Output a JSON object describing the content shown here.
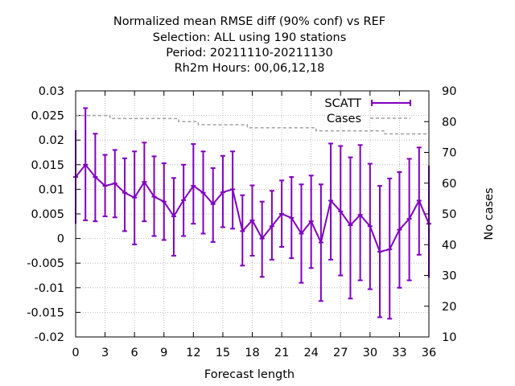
{
  "chart_data": {
    "type": "line",
    "title_lines": [
      "Normalized mean RMSE diff (90% conf) vs REF",
      "Selection: ALL using   190 stations",
      "Period: 20211110-20211130",
      "Rh2m   Hours:  00,06,12,18"
    ],
    "xlabel": "Forecast length",
    "ylabel": "",
    "y2label": "No cases",
    "xlim": [
      0,
      36
    ],
    "ylim": [
      -0.02,
      0.03
    ],
    "y2lim": [
      10,
      90
    ],
    "xticks": [
      "0",
      "3",
      "6",
      "9",
      "12",
      "15",
      "18",
      "21",
      "24",
      "27",
      "30",
      "33",
      "36"
    ],
    "yticks": [
      "-0.02",
      "-0.015",
      "-0.01",
      "-0.005",
      "0",
      "0.005",
      "0.01",
      "0.015",
      "0.02",
      "0.025",
      "0.03"
    ],
    "y2ticks": [
      "10",
      "20",
      "30",
      "40",
      "50",
      "60",
      "70",
      "80",
      "90"
    ],
    "grid": true,
    "legend_position": "top-right",
    "series": [
      {
        "name": "SCATT",
        "color": "#8000c0",
        "x": [
          0,
          1,
          2,
          3,
          4,
          5,
          6,
          7,
          8,
          9,
          10,
          11,
          12,
          13,
          14,
          15,
          16,
          17,
          18,
          19,
          20,
          21,
          22,
          23,
          24,
          25,
          26,
          27,
          28,
          29,
          30,
          31,
          32,
          33,
          34,
          35,
          36
        ],
        "y": [
          0.0125,
          0.015,
          0.0125,
          0.0107,
          0.0112,
          0.0093,
          0.0083,
          0.0115,
          0.0085,
          0.0075,
          0.0045,
          0.0078,
          0.0107,
          0.0093,
          0.007,
          0.0094,
          0.01,
          0.0015,
          0.0037,
          0.0,
          0.0025,
          0.005,
          0.0042,
          0.001,
          0.0035,
          -0.0008,
          0.0077,
          0.0055,
          0.0027,
          0.0048,
          0.0025,
          -0.0027,
          -0.0022,
          0.0018,
          0.004,
          0.0077,
          0.003
        ],
        "err_low": [
          0.003,
          0.0037,
          0.0035,
          0.0045,
          0.0043,
          0.0015,
          -0.0012,
          0.0035,
          0.0005,
          -0.0003,
          -0.0035,
          0.0005,
          0.003,
          0.001,
          -0.0007,
          0.0023,
          0.002,
          -0.0055,
          -0.0035,
          -0.0078,
          -0.0043,
          -0.0017,
          -0.004,
          -0.009,
          -0.006,
          -0.0127,
          -0.0043,
          -0.0075,
          -0.0122,
          -0.0085,
          -0.0103,
          -0.016,
          -0.0163,
          -0.01,
          -0.0085,
          -0.0033,
          -0.008
        ],
        "err_high": [
          0.022,
          0.0265,
          0.0213,
          0.017,
          0.018,
          0.0163,
          0.0177,
          0.0195,
          0.0167,
          0.0153,
          0.0123,
          0.015,
          0.0192,
          0.0177,
          0.0143,
          0.0168,
          0.0177,
          0.0088,
          0.0108,
          0.0075,
          0.0097,
          0.0118,
          0.0125,
          0.011,
          0.0128,
          0.011,
          0.0193,
          0.0188,
          0.0165,
          0.019,
          0.0152,
          0.0107,
          0.0122,
          0.0135,
          0.0162,
          0.0185,
          0.0148
        ]
      },
      {
        "name": "Cases",
        "color": "#a0a0a0",
        "axis": "y2",
        "x": [
          0,
          1,
          2,
          3,
          4,
          5,
          6,
          7,
          8,
          9,
          10,
          11,
          12,
          13,
          14,
          15,
          16,
          17,
          18,
          19,
          20,
          21,
          22,
          23,
          24,
          25,
          26,
          27,
          28,
          29,
          30,
          31,
          32,
          33,
          34,
          35,
          36
        ],
        "y": [
          82,
          82,
          82,
          82,
          81,
          81,
          81,
          81,
          81,
          81,
          81,
          80,
          80,
          79,
          79,
          79,
          79,
          79,
          78,
          78,
          78,
          78,
          78,
          78,
          78,
          77,
          77,
          77,
          77,
          77,
          77,
          77,
          76,
          76,
          76,
          76,
          76
        ]
      }
    ]
  }
}
